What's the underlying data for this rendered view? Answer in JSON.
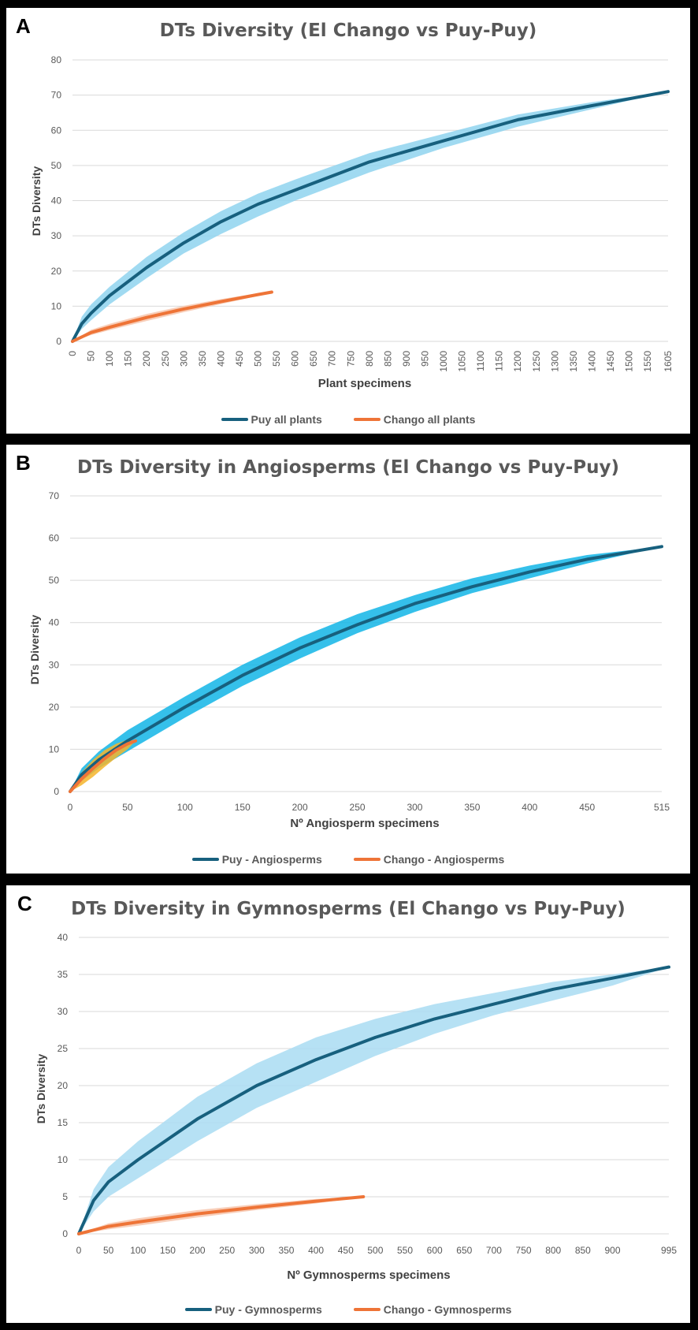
{
  "chart_data": [
    {
      "panel_label": "A",
      "type": "line",
      "title": "DTs Diversity (El Chango vs Puy-Puy)",
      "xlabel": "Plant specimens",
      "ylabel": "DTs Diversity",
      "xlim": [
        0,
        1605
      ],
      "ylim": [
        0,
        80
      ],
      "yticks": [
        0,
        10,
        20,
        30,
        40,
        50,
        60,
        70,
        80
      ],
      "xticks": [
        "0",
        "50",
        "100",
        "150",
        "200",
        "250",
        "300",
        "350",
        "400",
        "450",
        "500",
        "550",
        "600",
        "650",
        "700",
        "750",
        "800",
        "850",
        "900",
        "950",
        "1000",
        "1050",
        "1100",
        "1150",
        "1200",
        "1250",
        "1300",
        "1350",
        "1400",
        "1450",
        "1500",
        "1550",
        "1605"
      ],
      "xtick_rotated": true,
      "grid": true,
      "legend_position": "bottom",
      "series": [
        {
          "name": "Puy all plants",
          "color": "#17607e",
          "band_color": "#8fd3ef",
          "x": [
            0,
            25,
            50,
            100,
            200,
            300,
            400,
            500,
            600,
            800,
            1000,
            1200,
            1400,
            1605
          ],
          "y": [
            0,
            5,
            8,
            13,
            21,
            28,
            34,
            39,
            43,
            51,
            57,
            63,
            67,
            71
          ],
          "lower": [
            0,
            3.5,
            6,
            10.5,
            18,
            25,
            30.5,
            35.5,
            40,
            48,
            55,
            61,
            66,
            71
          ],
          "upper": [
            0,
            7,
            10.5,
            15.5,
            24,
            31,
            37,
            42,
            46,
            53.5,
            59,
            64.5,
            68,
            71
          ]
        },
        {
          "name": "Chango all plants",
          "color": "#ee7437",
          "band_color": "#f7c6ad",
          "x": [
            0,
            50,
            100,
            200,
            300,
            400,
            500,
            537
          ],
          "y": [
            0,
            2.5,
            4,
            6.8,
            9.2,
            11.3,
            13.3,
            14
          ],
          "lower": [
            0,
            1.8,
            3.2,
            5.8,
            8.3,
            10.6,
            12.9,
            14
          ],
          "upper": [
            0,
            3.3,
            5,
            7.8,
            10.1,
            12,
            13.7,
            14
          ]
        }
      ]
    },
    {
      "panel_label": "B",
      "type": "line",
      "title": "DTs Diversity in Angiosperms (El Chango vs Puy-Puy)",
      "xlabel": "Nº Angiosperm specimens",
      "ylabel": "DTs Diversity",
      "xlim": [
        0,
        515
      ],
      "ylim": [
        0,
        70
      ],
      "yticks": [
        0,
        10,
        20,
        30,
        40,
        50,
        60,
        70
      ],
      "xticks": [
        "0",
        "50",
        "100",
        "150",
        "200",
        "250",
        "300",
        "350",
        "400",
        "450",
        "515"
      ],
      "xtick_rotated": false,
      "grid": true,
      "legend_position": "bottom",
      "series": [
        {
          "name": "Puy - Angiosperms",
          "color": "#17607e",
          "band_color": "#12b5e6",
          "x": [
            0,
            10,
            25,
            50,
            100,
            150,
            200,
            250,
            300,
            350,
            400,
            450,
            515
          ],
          "y": [
            0,
            4,
            7.5,
            12,
            20,
            27.5,
            34,
            39.5,
            44.5,
            48.5,
            52,
            55,
            58
          ],
          "lower": [
            0,
            2.5,
            5.5,
            9.5,
            17.5,
            25,
            31.5,
            37.5,
            42.5,
            47,
            50.5,
            54,
            58
          ],
          "upper": [
            0,
            5.5,
            9.5,
            14.5,
            22.5,
            30,
            36.5,
            42,
            46.5,
            50.5,
            53.5,
            56,
            58
          ]
        },
        {
          "name": "Chango - Angiosperms",
          "color": "#ee7437",
          "band_color": "#f4b52c",
          "x": [
            0,
            10,
            20,
            30,
            40,
            50,
            57
          ],
          "y": [
            0,
            3,
            5.5,
            7.8,
            9.8,
            11.3,
            12
          ],
          "lower": [
            0,
            1.5,
            3.5,
            5.8,
            8,
            10,
            12
          ],
          "upper": [
            0,
            4.5,
            7.5,
            9.8,
            11.3,
            12.3,
            12
          ]
        }
      ]
    },
    {
      "panel_label": "C",
      "type": "line",
      "title": "DTs Diversity in Gymnosperms (El Chango vs Puy-Puy)",
      "xlabel": "Nº Gymnosperms specimens",
      "ylabel": "DTs Diversity",
      "xlim": [
        0,
        995
      ],
      "ylim": [
        0,
        40
      ],
      "yticks": [
        0,
        5,
        10,
        15,
        20,
        25,
        30,
        35,
        40
      ],
      "xticks": [
        "0",
        "50",
        "100",
        "150",
        "200",
        "250",
        "300",
        "350",
        "400",
        "450",
        "500",
        "550",
        "600",
        "650",
        "700",
        "750",
        "800",
        "850",
        "900",
        "995"
      ],
      "xtick_rotated": false,
      "grid": true,
      "legend_position": "bottom",
      "series": [
        {
          "name": "Puy - Gymnosperms",
          "color": "#17607e",
          "band_color": "#a9dcf2",
          "x": [
            0,
            25,
            50,
            100,
            200,
            300,
            400,
            500,
            600,
            700,
            800,
            900,
            995
          ],
          "y": [
            0,
            4.5,
            7,
            10,
            15.5,
            20,
            23.5,
            26.5,
            29,
            31,
            33,
            34.5,
            36
          ],
          "lower": [
            0,
            3,
            5,
            7.5,
            12.5,
            17,
            20.5,
            24,
            27,
            29.5,
            31.5,
            33.5,
            36
          ],
          "upper": [
            0,
            6,
            9,
            12.5,
            18.5,
            23,
            26.5,
            29,
            31,
            32.5,
            34,
            35,
            36
          ]
        },
        {
          "name": "Chango - Gymnosperms",
          "color": "#ee7437",
          "band_color": "#f7c6ad",
          "x": [
            0,
            50,
            100,
            200,
            300,
            400,
            480
          ],
          "y": [
            0,
            1,
            1.6,
            2.7,
            3.6,
            4.4,
            5
          ],
          "lower": [
            0,
            0.6,
            1.1,
            2.2,
            3.2,
            4.1,
            5
          ],
          "upper": [
            0,
            1.4,
            2.1,
            3.2,
            4.0,
            4.7,
            5
          ]
        }
      ]
    }
  ]
}
